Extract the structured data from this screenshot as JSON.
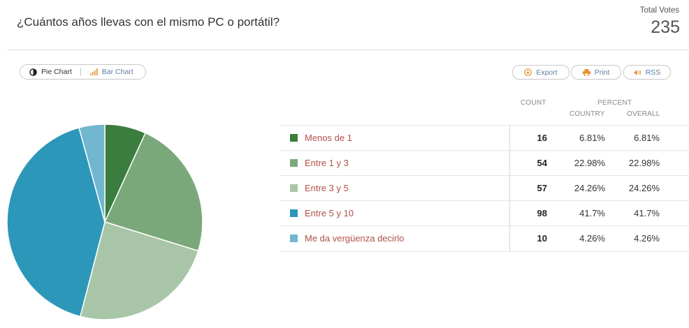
{
  "header": {
    "title": "¿Cuántos años llevas con el mismo PC o portátil?",
    "total_votes_label": "Total Votes",
    "total_votes": "235"
  },
  "view_toggle": {
    "pie_label": "Pie Chart",
    "bar_label": "Bar Chart",
    "selected": "pie"
  },
  "actions": {
    "export_label": "Export",
    "print_label": "Print",
    "rss_label": "RSS"
  },
  "table": {
    "count_header": "COUNT",
    "percent_header": "PERCENT",
    "country_header": "COUNTRY",
    "overall_header": "OVERALL"
  },
  "rows": [
    {
      "label": "Menos de 1",
      "count": "16",
      "country": "6.81%",
      "overall": "6.81%"
    },
    {
      "label": "Entre 1 y 3",
      "count": "54",
      "country": "22.98%",
      "overall": "22.98%"
    },
    {
      "label": "Entre 3 y 5",
      "count": "57",
      "country": "24.26%",
      "overall": "24.26%"
    },
    {
      "label": "Entre 5 y 10",
      "count": "98",
      "country": "41.7%",
      "overall": "41.7%"
    },
    {
      "label": "Me da vergüenza decirlo",
      "count": "10",
      "country": "4.26%",
      "overall": "4.26%"
    }
  ],
  "chart_data": {
    "type": "pie",
    "categories": [
      "Menos de 1",
      "Entre 1 y 3",
      "Entre 3 y 5",
      "Entre 5 y 10",
      "Me da vergüenza decirlo"
    ],
    "values": [
      16,
      54,
      57,
      98,
      10
    ],
    "colors": [
      "#3a7d3e",
      "#7aa87b",
      "#a8c6a7",
      "#2d97ba",
      "#70b7cf"
    ],
    "start_angle": "top, clockwise"
  },
  "colors": {
    "accent_link": "#b0514a",
    "button_text": "#5b7fa6",
    "icon_orange": "#e8902c"
  }
}
